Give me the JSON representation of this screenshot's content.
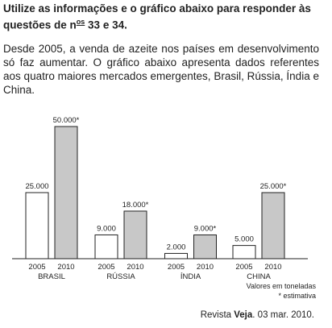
{
  "header": {
    "text_start": "Utilize as informações e o gráfico abaixo para responder às questões de n",
    "superscript": "os",
    "text_end": " 33 e 34."
  },
  "paragraph": "Desde 2005, a venda de azeite nos países em desenvolvimento só faz aumentar. O gráfico abaixo apresenta dados referentes aos quatro maiores mercados emergentes, Brasil, Rússia, Índia e China.",
  "chart_data": {
    "type": "bar",
    "categories": [
      "BRASIL",
      "RÚSSIA",
      "ÍNDIA",
      "CHINA"
    ],
    "series": [
      {
        "name": "2005",
        "color": "#ffffff",
        "values": [
          25000,
          9000,
          2000,
          5000
        ],
        "value_labels": [
          "25.000",
          "9.000",
          "2.000",
          "5.000"
        ]
      },
      {
        "name": "2010",
        "color": "#c8c8c8",
        "values": [
          50000,
          18000,
          9000,
          25000
        ],
        "value_labels": [
          "50.000*",
          "18.000*",
          "9.000*",
          "25.000*"
        ]
      }
    ],
    "notes": [
      "Valores em toneladas",
      "* estimativa"
    ]
  },
  "source": {
    "prefix": "Revista ",
    "title": "Veja",
    "suffix": ". 03 mar. 2010."
  }
}
